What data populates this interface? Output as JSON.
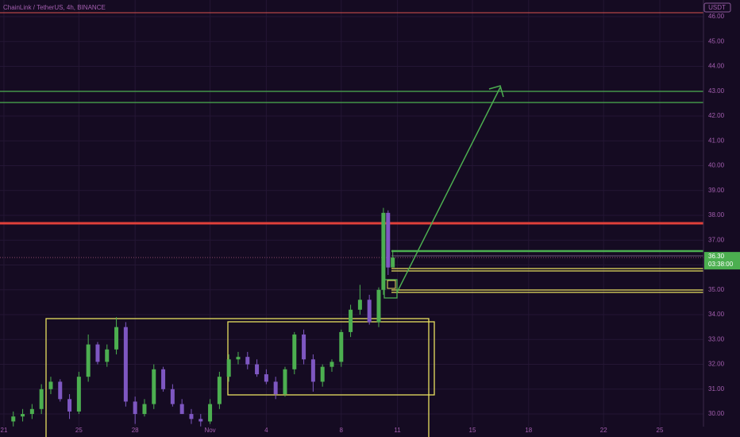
{
  "chart_data": {
    "type": "candlestick",
    "title": "ChainLink / TetherUS, 4h, BINANCE",
    "currency": "USDT",
    "up_color": "#4caf50",
    "down_color": "#7e57c2",
    "grid": true,
    "x": [
      21.5,
      22,
      22.5,
      23,
      23.5,
      24,
      24.5,
      25,
      25.5,
      26,
      26.5,
      27,
      27.5,
      28,
      28.5,
      29,
      29.5,
      30,
      30.5,
      31,
      31.5,
      32,
      32.5,
      33,
      33.5,
      34,
      34.5,
      35,
      35.5,
      36,
      36.5,
      37,
      37.5,
      38,
      38.5,
      39,
      39.5,
      40,
      40.5,
      41,
      41.25,
      41.5,
      41.75
    ],
    "open": [
      29.7,
      29.9,
      30.0,
      30.2,
      31.0,
      31.3,
      30.6,
      30.1,
      31.5,
      32.8,
      32.1,
      32.6,
      33.5,
      30.5,
      30.0,
      30.4,
      31.8,
      31.0,
      30.4,
      30.0,
      29.8,
      29.7,
      30.4,
      31.5,
      32.2,
      32.3,
      32.0,
      31.6,
      31.3,
      30.8,
      31.8,
      33.2,
      32.2,
      31.3,
      31.9,
      32.1,
      33.3,
      34.2,
      34.6,
      33.7,
      35.0,
      38.1,
      35.9
    ],
    "high": [
      30.1,
      30.2,
      30.4,
      31.2,
      31.5,
      31.4,
      30.8,
      31.7,
      33.2,
      32.9,
      32.8,
      33.9,
      33.7,
      30.7,
      30.6,
      32.0,
      31.9,
      31.2,
      30.6,
      30.2,
      30.0,
      30.6,
      31.7,
      32.4,
      32.5,
      32.5,
      32.2,
      31.8,
      31.5,
      31.9,
      33.3,
      33.4,
      32.4,
      32.0,
      32.2,
      33.4,
      34.4,
      35.2,
      34.8,
      35.1,
      38.3,
      38.2,
      36.6
    ],
    "low": [
      29.5,
      29.7,
      29.8,
      30.0,
      30.8,
      30.5,
      29.8,
      30.0,
      31.3,
      32.0,
      31.9,
      32.4,
      30.3,
      29.6,
      29.9,
      30.2,
      30.9,
      30.3,
      30.0,
      29.6,
      29.5,
      29.6,
      30.2,
      31.3,
      32.0,
      31.8,
      31.5,
      31.2,
      30.6,
      30.7,
      31.6,
      32.0,
      30.9,
      31.1,
      31.7,
      31.9,
      33.1,
      34.0,
      33.6,
      33.5,
      34.8,
      35.6,
      35.9
    ],
    "close": [
      29.9,
      30.0,
      30.2,
      31.0,
      31.3,
      30.6,
      30.1,
      31.5,
      32.8,
      32.1,
      32.6,
      33.5,
      30.5,
      30.0,
      30.4,
      31.8,
      31.0,
      30.4,
      30.0,
      29.8,
      29.7,
      30.4,
      31.5,
      32.2,
      32.3,
      32.0,
      31.6,
      31.3,
      30.8,
      31.8,
      33.2,
      32.2,
      31.3,
      31.9,
      32.1,
      33.3,
      34.2,
      34.6,
      33.7,
      35.0,
      38.1,
      35.9,
      36.3
    ],
    "xlim": [
      20.79,
      58.33
    ],
    "xticks": [
      21,
      25,
      28,
      {
        "value": 32,
        "label": "Nov"
      },
      {
        "value": 35,
        "label": "4"
      },
      {
        "value": 39,
        "label": "8"
      },
      {
        "value": 42,
        "label": "11"
      },
      {
        "value": 46,
        "label": "15"
      },
      {
        "value": 49,
        "label": "18"
      },
      {
        "value": 53,
        "label": "22"
      },
      {
        "value": 56,
        "label": "25"
      }
    ],
    "ylim": [
      29.49,
      46.67
    ],
    "yticks": [
      {
        "value": 30,
        "label": "30.00"
      },
      {
        "value": 31,
        "label": "31.00"
      },
      {
        "value": 32,
        "label": "32.00"
      },
      {
        "value": 33,
        "label": "33.00"
      },
      {
        "value": 34,
        "label": "34.00"
      },
      {
        "value": 35,
        "label": "35.00"
      },
      {
        "value": 36,
        "label": "36.00"
      },
      {
        "value": 37,
        "label": "37.00"
      },
      {
        "value": 38,
        "label": "38.00"
      },
      {
        "value": 39,
        "label": "39.00"
      },
      {
        "value": 40,
        "label": "40.00"
      },
      {
        "value": 41,
        "label": "41.00"
      },
      {
        "value": 42,
        "label": "42.00"
      },
      {
        "value": 43,
        "label": "43.00"
      },
      {
        "value": 44,
        "label": "44.00"
      },
      {
        "value": 45,
        "label": "45.00"
      },
      {
        "value": 46,
        "label": "46.00"
      }
    ],
    "price_marker": {
      "value": 36.3,
      "label": "36.30",
      "countdown": "03:38:00"
    }
  }
}
